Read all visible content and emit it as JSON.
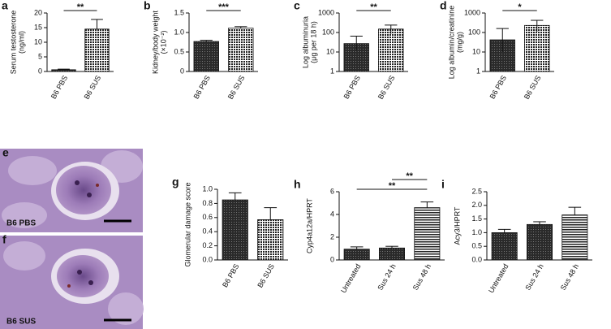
{
  "chart_data": [
    {
      "type": "bar",
      "panel": "a",
      "ylabel": [
        "Serum testosterone",
        "(ng/ml)"
      ],
      "categories": [
        "B6 PBS",
        "B6 SUS"
      ],
      "values": [
        0.6,
        14.5
      ],
      "errors": [
        0.2,
        3.3
      ],
      "fills": [
        "dark",
        "dots"
      ],
      "ylim": [
        0,
        20
      ],
      "yticks": [
        0,
        5,
        10,
        15,
        20
      ],
      "brackets": [
        {
          "text": "**",
          "between": [
            0,
            1
          ]
        }
      ]
    },
    {
      "type": "bar",
      "panel": "b",
      "ylabel": [
        "Kidney/body weight",
        "(×10⁻²)"
      ],
      "categories": [
        "B6 PBS",
        "B6 SUS"
      ],
      "values": [
        0.77,
        1.11
      ],
      "errors": [
        0.03,
        0.04
      ],
      "fills": [
        "dark",
        "dots"
      ],
      "ylim": [
        0,
        1.5
      ],
      "yticks": [
        0,
        0.5,
        {
          "value": 1,
          "label": "1.0"
        },
        1.5
      ],
      "brackets": [
        {
          "text": "***",
          "between": [
            0,
            1
          ]
        }
      ]
    },
    {
      "type": "bar",
      "panel": "c",
      "log": true,
      "ylabel": [
        "Log albuminuria",
        "(μg per 18 h)"
      ],
      "categories": [
        "B6 PBS",
        "B6 SUS"
      ],
      "values": [
        27,
        150
      ],
      "error_bounds": [
        [
          12,
          65
        ],
        [
          85,
          240
        ]
      ],
      "fills": [
        "dark",
        "dots"
      ],
      "ylim": [
        1,
        1000
      ],
      "yticks": [
        1,
        10,
        100,
        1000
      ],
      "brackets": [
        {
          "text": "**",
          "between": [
            0,
            1
          ]
        }
      ]
    },
    {
      "type": "bar",
      "panel": "d",
      "log": true,
      "ylabel": [
        "Log albumin/creatinine",
        "(mg/g)"
      ],
      "categories": [
        "B6 PBS",
        "B6 SUS"
      ],
      "values": [
        42,
        230
      ],
      "error_bounds": [
        [
          10,
          160
        ],
        [
          110,
          420
        ]
      ],
      "fills": [
        "dark",
        "dots"
      ],
      "ylim": [
        1,
        1000
      ],
      "yticks": [
        1,
        10,
        100,
        1000
      ],
      "brackets": [
        {
          "text": "*",
          "between": [
            0,
            1
          ]
        }
      ]
    },
    {
      "type": "bar",
      "panel": "g",
      "ylabel": [
        "Glomerular damage score"
      ],
      "categories": [
        "B6 PBS",
        "B6 SUS"
      ],
      "values": [
        0.85,
        0.57
      ],
      "errors": [
        0.1,
        0.17
      ],
      "fills": [
        "dark",
        "dots"
      ],
      "ylim": [
        0,
        1
      ],
      "yticks": [
        {
          "value": 0,
          "label": "0.0"
        },
        0.2,
        0.4,
        0.6,
        0.8,
        {
          "value": 1,
          "label": "1.0"
        }
      ],
      "brackets": []
    },
    {
      "type": "bar",
      "panel": "h",
      "ylabel": [
        "Cyp4a12a/HPRT"
      ],
      "categories": [
        "Untreated",
        "Sus 24 h",
        "Sus 48 h"
      ],
      "values": [
        0.95,
        1.05,
        4.6
      ],
      "errors": [
        0.2,
        0.15,
        0.5
      ],
      "fills": [
        "dark",
        "dark",
        "stripes"
      ],
      "ylim": [
        0,
        6
      ],
      "yticks": [
        0,
        2,
        4,
        6
      ],
      "brackets": [
        {
          "text": "**",
          "between": [
            0,
            2
          ]
        },
        {
          "text": "**",
          "between": [
            1,
            2
          ]
        }
      ]
    },
    {
      "type": "bar",
      "panel": "i",
      "ylabel": [
        "Acy3/HPRT"
      ],
      "categories": [
        "Untreated",
        "Sus 24 h",
        "Sus 48 h"
      ],
      "values": [
        1.0,
        1.3,
        1.65
      ],
      "errors": [
        0.12,
        0.1,
        0.28
      ],
      "fills": [
        "dark",
        "dark",
        "stripes"
      ],
      "ylim": [
        0,
        2.5
      ],
      "yticks": [
        {
          "value": 0,
          "label": "0.0"
        },
        0.5,
        {
          "value": 1,
          "label": "1.0"
        },
        1.5,
        {
          "value": 2,
          "label": "2.0"
        },
        2.5
      ],
      "brackets": []
    }
  ],
  "images": [
    {
      "panel": "e",
      "label": "B6 PBS"
    },
    {
      "panel": "f",
      "label": "B6 SUS"
    }
  ]
}
